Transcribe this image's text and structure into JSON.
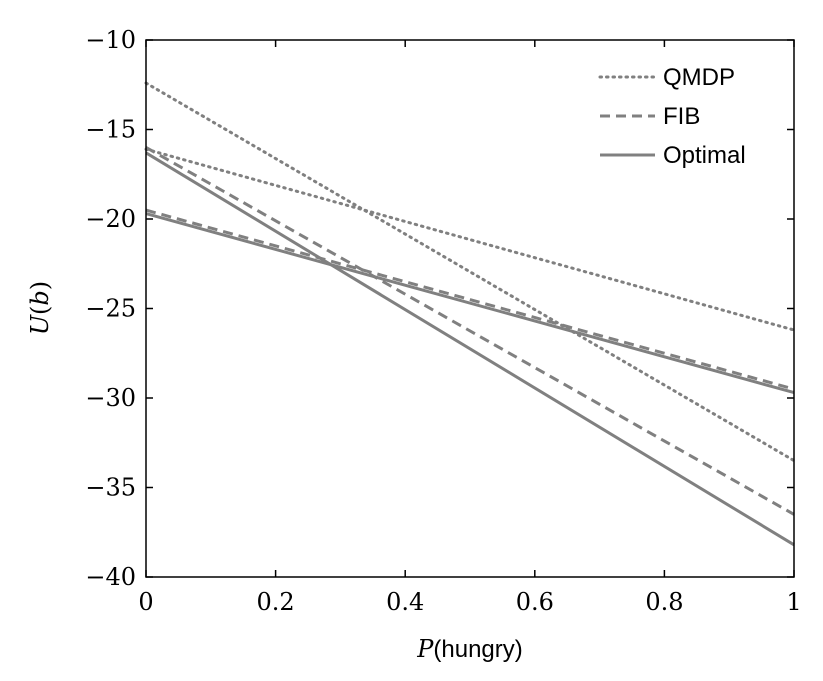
{
  "chart_data": {
    "type": "line",
    "xlim": [
      0,
      1
    ],
    "ylim": [
      -40,
      -10
    ],
    "xticks": [
      0,
      0.2,
      0.4,
      0.6,
      0.8,
      1
    ],
    "xtick_labels": [
      "0",
      "0.2",
      "0.4",
      "0.6",
      "0.8",
      "1"
    ],
    "yticks": [
      -10,
      -15,
      -20,
      -25,
      -30,
      -35,
      -40
    ],
    "ytick_labels": [
      "−10",
      "−15",
      "−20",
      "−25",
      "−30",
      "−35",
      "−40"
    ],
    "xlabel": {
      "italic": "P",
      "text": "(hungry)"
    },
    "ylabel": {
      "italic_u": "U",
      "open": "(",
      "italic_b": "b",
      "close": ")"
    },
    "grid": false,
    "legend_position": "top-right",
    "legend": [
      "QMDP",
      "FIB",
      "Optimal"
    ],
    "color": "#808080",
    "series": [
      {
        "name": "QMDP",
        "style": "dotted",
        "lines": [
          {
            "x": [
              0,
              1
            ],
            "y": [
              -12.4,
              -33.5
            ]
          },
          {
            "x": [
              0,
              1
            ],
            "y": [
              -16.1,
              -26.2
            ]
          }
        ]
      },
      {
        "name": "FIB",
        "style": "dashed",
        "lines": [
          {
            "x": [
              0,
              1
            ],
            "y": [
              -16.0,
              -36.5
            ]
          },
          {
            "x": [
              0,
              1
            ],
            "y": [
              -19.5,
              -29.5
            ]
          }
        ]
      },
      {
        "name": "Optimal",
        "style": "solid",
        "lines": [
          {
            "x": [
              0,
              1
            ],
            "y": [
              -16.3,
              -38.2
            ]
          },
          {
            "x": [
              0,
              1
            ],
            "y": [
              -19.7,
              -29.7
            ]
          }
        ]
      }
    ]
  }
}
